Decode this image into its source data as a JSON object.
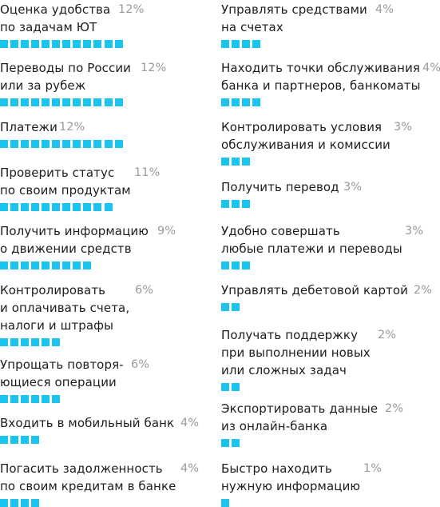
{
  "chart_data": {
    "type": "bar",
    "unit": "%",
    "bar_color": "#19c4ee",
    "items": [
      {
        "label": "Оценка удобства\nпо задачам ЮТ",
        "value": 12,
        "pct": "12%"
      },
      {
        "label": "Переводы по России\nили за рубеж",
        "value": 12,
        "pct": "12%"
      },
      {
        "label": "Платежи",
        "value": 12,
        "pct": "12%"
      },
      {
        "label": "Проверить статус\nпо своим продуктам",
        "value": 11,
        "pct": "11%"
      },
      {
        "label": "Получить информацию\nо движении средств",
        "value": 9,
        "pct": "9%"
      },
      {
        "label": "Контролировать\nи оплачивать счета,\nналоги и штрафы",
        "value": 6,
        "pct": "6%"
      },
      {
        "label": "Упрощать повторя-\nющиеся операции",
        "value": 6,
        "pct": "6%"
      },
      {
        "label": "Входить в мобильный банк",
        "value": 4,
        "pct": "4%"
      },
      {
        "label": "Погасить задолженность\nпо своим кредитам в банке",
        "value": 4,
        "pct": "4%"
      },
      {
        "label": "Управлять средствами\nна счетах",
        "value": 4,
        "pct": "4%"
      },
      {
        "label": "Находить точки обслуживания\nбанка и партнеров, банкоматы",
        "value": 4,
        "pct": "4%"
      },
      {
        "label": "Контролировать условия\nобслуживания и комиссии",
        "value": 3,
        "pct": "3%"
      },
      {
        "label": "Получить перевод",
        "value": 3,
        "pct": "3%"
      },
      {
        "label": "Удобно совершать\nлюбые платежи и переводы",
        "value": 3,
        "pct": "3%"
      },
      {
        "label": "Управлять дебетовой картой",
        "value": 2,
        "pct": "2%"
      },
      {
        "label": "Получать поддержку\nпри выполнении новых\nили сложных задач",
        "value": 2,
        "pct": "2%"
      },
      {
        "label": "Экспортировать данные\nиз онлайн-банка",
        "value": 2,
        "pct": "2%"
      },
      {
        "label": "Быстро находить\nнужную информацию",
        "value": 1,
        "pct": "1%"
      }
    ]
  }
}
